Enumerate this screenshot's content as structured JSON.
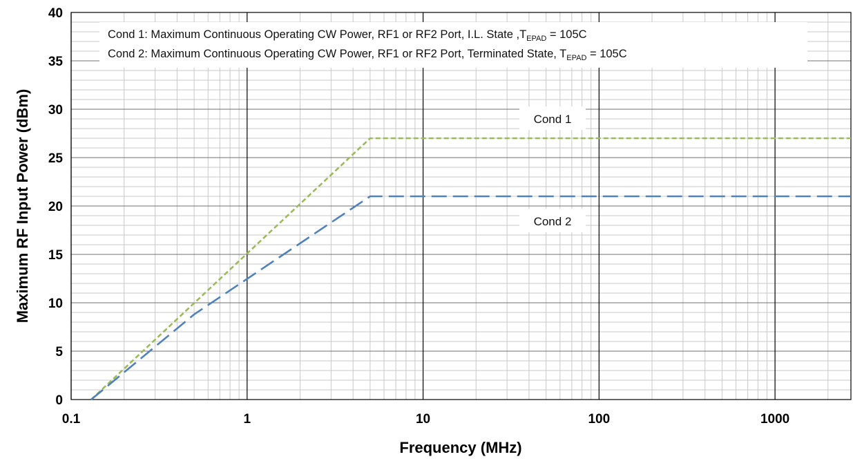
{
  "chart_data": {
    "type": "line",
    "title": "",
    "xlabel": "Frequency (MHz)",
    "ylabel": "Maximum RF Input Power (dBm)",
    "x_scale": "log",
    "xlim": [
      0.1,
      2700
    ],
    "ylim": [
      0,
      40
    ],
    "x_ticks": [
      "0.1",
      "1",
      "10",
      "100",
      "1000"
    ],
    "x_tick_values": [
      0.1,
      1,
      10,
      100,
      1000
    ],
    "y_ticks": [
      "0",
      "5",
      "10",
      "15",
      "20",
      "25",
      "30",
      "35",
      "40"
    ],
    "y_tick_values": [
      0,
      5,
      10,
      15,
      20,
      25,
      30,
      35,
      40
    ],
    "grid": true,
    "legend": {
      "position": "top",
      "entries": [
        {
          "text": "Cond 1: Maximum Continuous Operating CW Power, RF1 or RF2 Port, I.L. State ,T",
          "subscript": "EPAD",
          "suffix": " = 105C"
        },
        {
          "text": "Cond 2: Maximum Continuous Operating CW Power, RF1 or RF2 Port, Terminated State, T",
          "subscript": "EPAD",
          "suffix": " = 105C"
        }
      ]
    },
    "series": [
      {
        "name": "Cond 1",
        "color": "#9BBB59",
        "dash": "short",
        "x": [
          0.13,
          5,
          2700
        ],
        "y": [
          0,
          27,
          27
        ]
      },
      {
        "name": "Cond 2",
        "color": "#4F81BD",
        "dash": "long",
        "x": [
          0.13,
          0.5,
          5,
          2700
        ],
        "y": [
          0,
          8.8,
          21,
          21
        ]
      }
    ]
  }
}
